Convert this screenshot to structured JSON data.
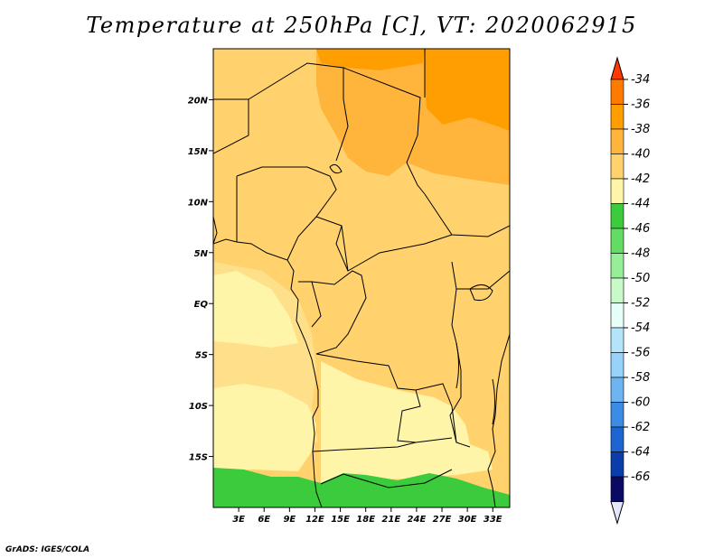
{
  "title": "Temperature at 250hPa [C], VT: 2020062915",
  "footer": "GrADS: IGES/COLA",
  "map": {
    "lon_range": [
      0,
      35
    ],
    "lat_range": [
      -20,
      25
    ],
    "lon_ticks": [
      {
        "lon": 3,
        "label": "3E"
      },
      {
        "lon": 6,
        "label": "6E"
      },
      {
        "lon": 9,
        "label": "9E"
      },
      {
        "lon": 12,
        "label": "12E"
      },
      {
        "lon": 15,
        "label": "15E"
      },
      {
        "lon": 18,
        "label": "18E"
      },
      {
        "lon": 21,
        "label": "21E"
      },
      {
        "lon": 24,
        "label": "24E"
      },
      {
        "lon": 27,
        "label": "27E"
      },
      {
        "lon": 30,
        "label": "30E"
      },
      {
        "lon": 33,
        "label": "33E"
      }
    ],
    "lat_ticks": [
      {
        "lat": 20,
        "label": "20N"
      },
      {
        "lat": 15,
        "label": "15N"
      },
      {
        "lat": 10,
        "label": "10N"
      },
      {
        "lat": 5,
        "label": "5N"
      },
      {
        "lat": 0,
        "label": "EQ"
      },
      {
        "lat": -5,
        "label": "5S"
      },
      {
        "lat": -10,
        "label": "10S"
      },
      {
        "lat": -15,
        "label": "15S"
      }
    ]
  },
  "colorbar": {
    "levels": [
      "-34",
      "-36",
      "-38",
      "-40",
      "-42",
      "-44",
      "-46",
      "-48",
      "-50",
      "-52",
      "-54",
      "-56",
      "-58",
      "-60",
      "-62",
      "-64",
      "-66"
    ],
    "colors": [
      "#ff7a00",
      "#ff9e00",
      "#ffb43c",
      "#ffd26e",
      "#fff5a8",
      "#3ccb3c",
      "#64dc64",
      "#96ee96",
      "#c8f9c8",
      "#e6fff8",
      "#b4e4fa",
      "#96d2fa",
      "#6eb4f0",
      "#3c8ce6",
      "#1e64d2",
      "#0a3caa",
      "#0a0a64"
    ],
    "top_color": "#ff3a00",
    "bottom_color": "#e6e6fa"
  }
}
